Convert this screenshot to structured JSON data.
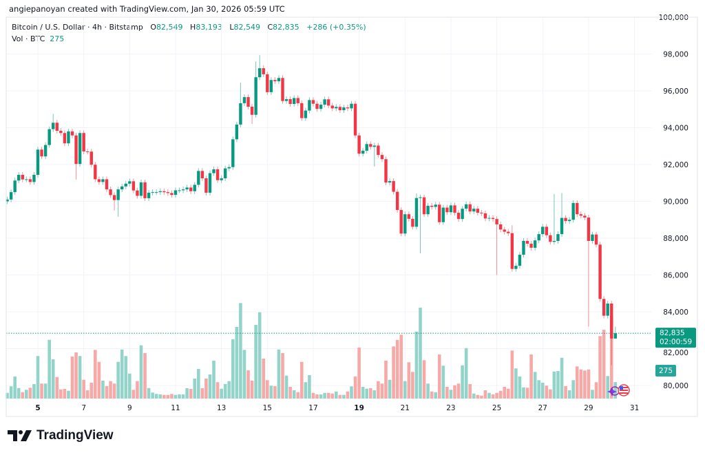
{
  "credit": "angiepanoyan created with TradingView.com, Jan 30, 2026 05:59 UTC",
  "legend": {
    "symbol": "Bitcoin / U.S. Dollar · 4h · Bitstamp",
    "o_label": "O",
    "o": "82,549",
    "h_label": "H",
    "h": "83,193",
    "l_label": "L",
    "l": "82,549",
    "c_label": "C",
    "c": "82,835",
    "change": "+286 (+0.35%)",
    "vol_label": "Vol · BTC",
    "vol": "275"
  },
  "price_label": {
    "price": "82,835",
    "countdown": "02:00:59"
  },
  "volume_label": "275",
  "brand": "TradingView",
  "colors": {
    "up": "#089981",
    "down": "#f23645",
    "vol_up": "#92d4c9",
    "vol_down": "#f7a9a7",
    "grid": "#f0f3fa"
  },
  "chart_data": {
    "type": "candlestick",
    "title": "Bitcoin / U.S. Dollar · 4h · Bitstamp",
    "interval_hours": 4,
    "first_candle": "Jan 3 16:00",
    "first_open": 90000,
    "ylim": [
      80000,
      100000
    ],
    "y_ticks": [
      "80,000",
      "82,000",
      "84,000",
      "86,000",
      "88,000",
      "90,000",
      "92,000",
      "94,000",
      "96,000",
      "98,000",
      "100,000"
    ],
    "x_ticks": [
      {
        "label": "5",
        "bold": true
      },
      {
        "label": "7"
      },
      {
        "label": "9"
      },
      {
        "label": "11"
      },
      {
        "label": "13"
      },
      {
        "label": "15"
      },
      {
        "label": "17"
      },
      {
        "label": "19",
        "bold": true
      },
      {
        "label": "21"
      },
      {
        "label": "23"
      },
      {
        "label": "25"
      },
      {
        "label": "27"
      },
      {
        "label": "29"
      },
      {
        "label": "31"
      }
    ],
    "grid": true,
    "closes": [
      90100,
      90500,
      91130,
      91440,
      91190,
      91200,
      91050,
      91440,
      92810,
      92440,
      93060,
      93920,
      94270,
      93830,
      93710,
      93150,
      93800,
      93580,
      92030,
      93710,
      92710,
      92700,
      91990,
      91200,
      91050,
      91200,
      90650,
      90340,
      90070,
      90650,
      90810,
      90960,
      91090,
      90590,
      90300,
      91030,
      90170,
      90470,
      90500,
      90500,
      90550,
      90500,
      90450,
      90350,
      90600,
      90600,
      90650,
      90750,
      90550,
      90900,
      91650,
      91250,
      90470,
      91530,
      91740,
      91150,
      91250,
      91790,
      91860,
      93370,
      94170,
      95330,
      95660,
      95140,
      94700,
      96740,
      97230,
      96900,
      95930,
      96590,
      96520,
      96700,
      95450,
      95550,
      95290,
      95610,
      95330,
      94520,
      94930,
      95500,
      95300,
      95020,
      95250,
      95540,
      95200,
      95050,
      95130,
      94950,
      95100,
      95050,
      95300,
      93580,
      92590,
      92750,
      93110,
      92960,
      93030,
      92520,
      92290,
      91020,
      91100,
      90520,
      89530,
      88250,
      89300,
      89050,
      88620,
      90180,
      90220,
      89300,
      89760,
      89700,
      89820,
      88870,
      89660,
      89410,
      89780,
      89380,
      89040,
      89600,
      89840,
      89450,
      89600,
      89380,
      89350,
      89070,
      89100,
      89040,
      88750,
      88470,
      88350,
      88270,
      86330,
      86500,
      87100,
      87850,
      87700,
      87480,
      87880,
      88220,
      88620,
      88160,
      87800,
      87850,
      88220,
      89100,
      88930,
      89000,
      89910,
      89300,
      89220,
      89120,
      87850,
      88200,
      87650,
      84700,
      83790,
      84450,
      82549,
      82835
    ],
    "default_wick": 150,
    "wick_overrides": [
      {
        "i": 12,
        "high": 94750
      },
      {
        "i": 18,
        "low": 91190
      },
      {
        "i": 28,
        "low": 89500
      },
      {
        "i": 29,
        "low": 89160
      },
      {
        "i": 61,
        "high": 96450
      },
      {
        "i": 64,
        "low": 94200
      },
      {
        "i": 65,
        "high": 97600
      },
      {
        "i": 66,
        "high": 97940
      },
      {
        "i": 96,
        "low": 91890
      },
      {
        "i": 107,
        "high": 90430
      },
      {
        "i": 108,
        "low": 87180
      },
      {
        "i": 128,
        "low": 86000
      },
      {
        "i": 132,
        "high": 88700
      },
      {
        "i": 143,
        "high": 90400
      },
      {
        "i": 145,
        "high": 90450
      },
      {
        "i": 152,
        "low": 83200
      },
      {
        "i": 158,
        "low": 81100
      },
      {
        "i": 159,
        "high": 83193,
        "low": 82549
      }
    ],
    "volumes": [
      95,
      204,
      368,
      176,
      107,
      146,
      181,
      242,
      710,
      250,
      250,
      981,
      656,
      360,
      153,
      161,
      130,
      702,
      771,
      710,
      314,
      138,
      265,
      813,
      613,
      299,
      207,
      291,
      250,
      613,
      820,
      710,
      417,
      146,
      291,
      889,
      759,
      176,
      100,
      77,
      69,
      61,
      61,
      77,
      61,
      69,
      69,
      173,
      161,
      334,
      495,
      173,
      334,
      403,
      633,
      273,
      164,
      242,
      291,
      992,
      1196,
      1595,
      813,
      472,
      299,
      1231,
      1441,
      667,
      307,
      215,
      207,
      820,
      759,
      383,
      196,
      138,
      107,
      613,
      273,
      391,
      95,
      69,
      69,
      95,
      95,
      84,
      118,
      61,
      61,
      118,
      204,
      368,
      851,
      196,
      164,
      173,
      138,
      291,
      250,
      633,
      314,
      871,
      981,
      1066,
      291,
      606,
      445,
      1119,
      1518,
      641,
      250,
      118,
      107,
      736,
      549,
      196,
      146,
      222,
      250,
      555,
      843,
      242,
      84,
      61,
      49,
      138,
      95,
      69,
      95,
      130,
      196,
      164,
      802,
      503,
      368,
      187,
      181,
      736,
      445,
      307,
      265,
      215,
      153,
      452,
      460,
      682,
      207,
      138,
      307,
      537,
      486,
      468,
      486,
      146,
      273,
      1043,
      1150,
      376,
      1380,
      275
    ],
    "last_price": 82835
  }
}
